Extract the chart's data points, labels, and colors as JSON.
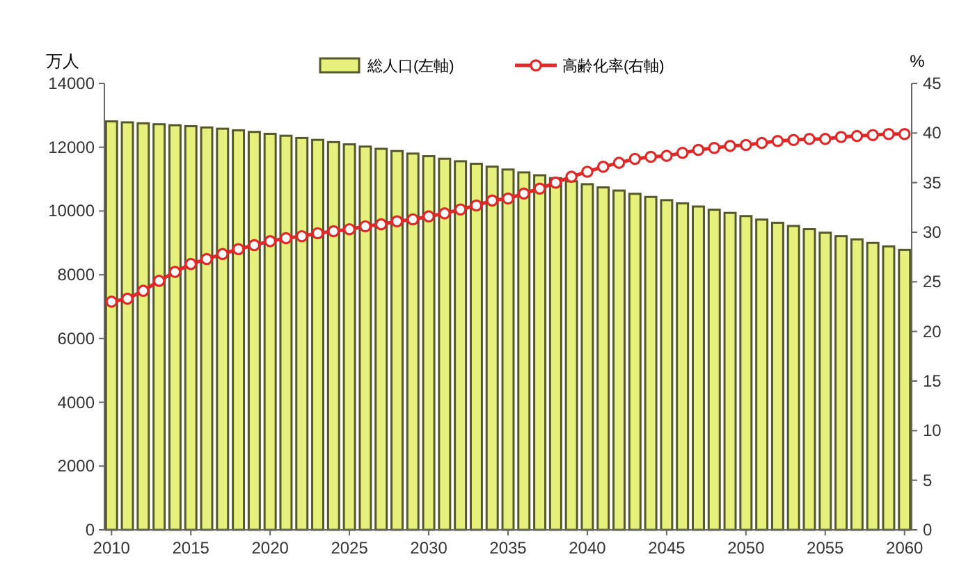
{
  "chart_data": {
    "type": "bar",
    "ylabel": "万人",
    "y2label": "%",
    "categories": [
      "2010",
      null,
      null,
      null,
      null,
      "2015",
      null,
      null,
      null,
      null,
      "2020",
      null,
      null,
      null,
      null,
      "2025",
      null,
      null,
      null,
      null,
      "2030",
      null,
      null,
      null,
      null,
      "2035",
      null,
      null,
      null,
      null,
      "2040",
      null,
      null,
      null,
      null,
      "2045",
      null,
      null,
      null,
      null,
      "2050",
      null,
      null,
      null,
      null,
      "2055",
      null,
      null,
      null,
      null,
      "2060"
    ],
    "series": [
      {
        "name": "総人口(左軸)",
        "color": "#e6f07c",
        "values": [
          12810,
          12780,
          12750,
          12720,
          12690,
          12660,
          12620,
          12580,
          12530,
          12480,
          12420,
          12360,
          12290,
          12230,
          12160,
          12090,
          12020,
          11950,
          11880,
          11800,
          11720,
          11640,
          11560,
          11480,
          11390,
          11300,
          11210,
          11120,
          11030,
          10930,
          10840,
          10740,
          10640,
          10540,
          10440,
          10340,
          10240,
          10140,
          10040,
          9940,
          9840,
          9730,
          9630,
          9530,
          9430,
          9320,
          9210,
          9110,
          9000,
          8890,
          8780
        ]
      },
      {
        "name": "高齢化率(右軸)",
        "type": "line",
        "axis": "y2",
        "color": "#e02828",
        "marker": "circle",
        "values": [
          23.0,
          23.3,
          24.1,
          25.1,
          26.0,
          26.8,
          27.3,
          27.8,
          28.3,
          28.7,
          29.1,
          29.4,
          29.6,
          29.9,
          30.1,
          30.3,
          30.6,
          30.8,
          31.1,
          31.3,
          31.6,
          31.9,
          32.3,
          32.7,
          33.2,
          33.4,
          33.9,
          34.4,
          35.0,
          35.6,
          36.1,
          36.6,
          37.0,
          37.4,
          37.6,
          37.7,
          38.0,
          38.3,
          38.5,
          38.7,
          38.8,
          39.0,
          39.2,
          39.3,
          39.4,
          39.4,
          39.6,
          39.7,
          39.8,
          39.9,
          39.9
        ]
      }
    ],
    "ylim": [
      0,
      14000
    ],
    "yticks": [
      0,
      2000,
      4000,
      6000,
      8000,
      10000,
      12000,
      14000
    ],
    "y2lim": [
      0,
      45
    ],
    "y2ticks": [
      0,
      5,
      10,
      15,
      20,
      25,
      30,
      35,
      40,
      45
    ],
    "grid": false,
    "legend": "top"
  }
}
